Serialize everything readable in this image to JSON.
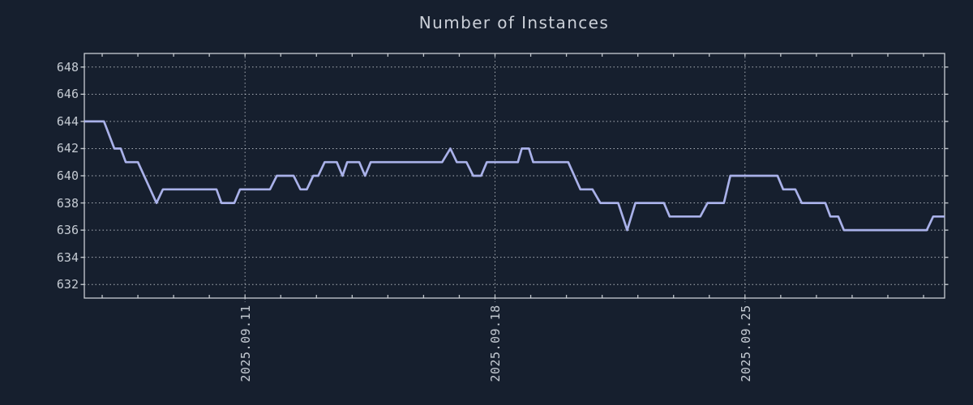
{
  "chart_data": {
    "type": "line",
    "title": "Number of Instances",
    "xlabel": "",
    "ylabel": "",
    "grid": "dotted",
    "legend": "none",
    "colors": {
      "background": "#161f2e",
      "line": "#a9b1e9",
      "grid": "#c7ccd2",
      "frame": "#c9ced4",
      "text": "#c5cbd3",
      "title_text": "#cbd0d8"
    },
    "x_axis": {
      "unit": "days from 2025-09-06 12:00",
      "range_days": [
        0,
        24.09
      ],
      "major_ticks": [
        {
          "day": 4.5,
          "label": "2025.09.11"
        },
        {
          "day": 11.5,
          "label": "2025.09.18"
        },
        {
          "day": 18.5,
          "label": "2025.09.25"
        }
      ],
      "minor_tick_start_day": 0.5,
      "minor_tick_step_days": 1
    },
    "y_axis": {
      "range": [
        631,
        649
      ],
      "ticks": [
        632,
        634,
        636,
        638,
        640,
        642,
        644,
        646,
        648
      ]
    },
    "series": [
      {
        "name": "instances",
        "points": [
          [
            0,
            644
          ],
          [
            0.55,
            644
          ],
          [
            0.84,
            642
          ],
          [
            1.02,
            642
          ],
          [
            1.16,
            641
          ],
          [
            1.5,
            641
          ],
          [
            2.02,
            638
          ],
          [
            2.2,
            639
          ],
          [
            3.7,
            639
          ],
          [
            3.84,
            638
          ],
          [
            4.2,
            638
          ],
          [
            4.36,
            639
          ],
          [
            5.2,
            639
          ],
          [
            5.39,
            640
          ],
          [
            5.86,
            640
          ],
          [
            6.05,
            639
          ],
          [
            6.23,
            639
          ],
          [
            6.41,
            640
          ],
          [
            6.55,
            640
          ],
          [
            6.73,
            641
          ],
          [
            7.07,
            641
          ],
          [
            7.23,
            640
          ],
          [
            7.36,
            641
          ],
          [
            7.7,
            641
          ],
          [
            7.86,
            640
          ],
          [
            8.02,
            641
          ],
          [
            10.02,
            641
          ],
          [
            10.25,
            642
          ],
          [
            10.43,
            641
          ],
          [
            10.7,
            641
          ],
          [
            10.89,
            640
          ],
          [
            11.11,
            640
          ],
          [
            11.27,
            641
          ],
          [
            12.14,
            641
          ],
          [
            12.25,
            642
          ],
          [
            12.45,
            642
          ],
          [
            12.57,
            641
          ],
          [
            13.55,
            641
          ],
          [
            13.89,
            639
          ],
          [
            14.23,
            639
          ],
          [
            14.45,
            638
          ],
          [
            14.95,
            638
          ],
          [
            15.2,
            636
          ],
          [
            15.43,
            638
          ],
          [
            16.23,
            638
          ],
          [
            16.39,
            637
          ],
          [
            17.25,
            637
          ],
          [
            17.45,
            638
          ],
          [
            17.91,
            638
          ],
          [
            18.09,
            640
          ],
          [
            19.41,
            640
          ],
          [
            19.57,
            639
          ],
          [
            19.91,
            639
          ],
          [
            20.09,
            638
          ],
          [
            20.75,
            638
          ],
          [
            20.89,
            637
          ],
          [
            21.11,
            637
          ],
          [
            21.27,
            636
          ],
          [
            23.59,
            636
          ],
          [
            23.77,
            637
          ],
          [
            24.09,
            637
          ]
        ]
      }
    ]
  }
}
